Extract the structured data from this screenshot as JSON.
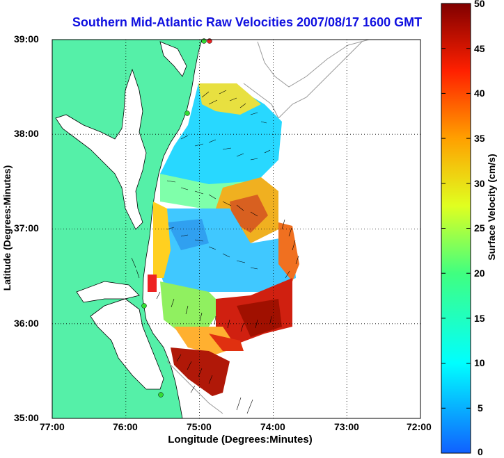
{
  "title": "Southern Mid-Atlantic Raw Velocities 2007/08/17 1600 GMT",
  "axes": {
    "xlabel": "Longitude (Degrees:Minutes)",
    "ylabel": "Latitude (Degrees:Minutes)",
    "x_ticks": [
      "77:00",
      "76:00",
      "75:00",
      "74:00",
      "73:00",
      "72:00"
    ],
    "y_ticks": [
      "39:00",
      "38:00",
      "37:00",
      "36:00",
      "35:00"
    ],
    "xlim": [
      -77,
      -72
    ],
    "ylim": [
      35,
      39
    ],
    "grid": "dotted"
  },
  "colorbar": {
    "label": "Surface Velocity (cm/s)",
    "ticks": [
      "50",
      "45",
      "40",
      "35",
      "30",
      "25",
      "20",
      "15",
      "10",
      "5",
      "0"
    ],
    "range": [
      0,
      50
    ]
  },
  "colors": {
    "land": "#55f0a8",
    "coast": "#ffffff",
    "grid": "#000000",
    "title": "#1010e0",
    "stations": "#33dd33",
    "station_alert": "#ee2222"
  }
}
